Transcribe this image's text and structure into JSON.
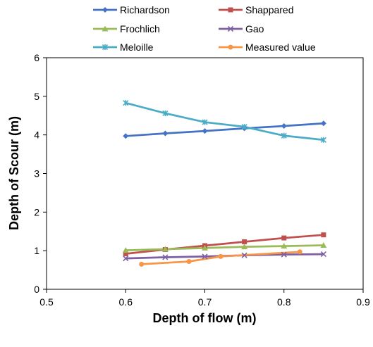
{
  "chart_data": {
    "type": "line",
    "title": "",
    "xlabel": "Depth of flow (m)",
    "ylabel": "Depth of Scour (m)",
    "xlim": [
      0.5,
      0.9
    ],
    "ylim": [
      0,
      6
    ],
    "x_ticks": [
      "0.5",
      "0.6",
      "0.7",
      "0.8",
      "0.9"
    ],
    "y_ticks": [
      "0",
      "1",
      "2",
      "3",
      "4",
      "5",
      "6"
    ],
    "grid": false,
    "legend_position": "top",
    "series": [
      {
        "name": "Richardson",
        "color": "#4472c4",
        "marker": "diamond",
        "x": [
          0.6,
          0.65,
          0.7,
          0.75,
          0.8,
          0.85
        ],
        "y": [
          3.97,
          4.04,
          4.1,
          4.17,
          4.23,
          4.3
        ]
      },
      {
        "name": "Shappared",
        "color": "#c0504d",
        "marker": "square",
        "x": [
          0.6,
          0.65,
          0.7,
          0.75,
          0.8,
          0.85
        ],
        "y": [
          0.92,
          1.03,
          1.13,
          1.23,
          1.33,
          1.41
        ]
      },
      {
        "name": "Frochlich",
        "color": "#9bbb59",
        "marker": "triangle",
        "x": [
          0.6,
          0.65,
          0.7,
          0.75,
          0.8,
          0.85
        ],
        "y": [
          1.01,
          1.04,
          1.07,
          1.1,
          1.12,
          1.14
        ]
      },
      {
        "name": "Gao",
        "color": "#7f5fa3",
        "marker": "x",
        "x": [
          0.6,
          0.65,
          0.7,
          0.75,
          0.8,
          0.85
        ],
        "y": [
          0.8,
          0.83,
          0.85,
          0.88,
          0.9,
          0.91
        ]
      },
      {
        "name": "Meloille",
        "color": "#4bacc6",
        "marker": "star",
        "x": [
          0.6,
          0.65,
          0.7,
          0.75,
          0.8,
          0.85
        ],
        "y": [
          4.83,
          4.56,
          4.33,
          4.21,
          3.98,
          3.87
        ]
      },
      {
        "name": "Measured value",
        "color": "#f79646",
        "marker": "circle",
        "x": [
          0.62,
          0.68,
          0.72,
          0.82
        ],
        "y": [
          0.65,
          0.72,
          0.85,
          0.97
        ]
      }
    ]
  }
}
